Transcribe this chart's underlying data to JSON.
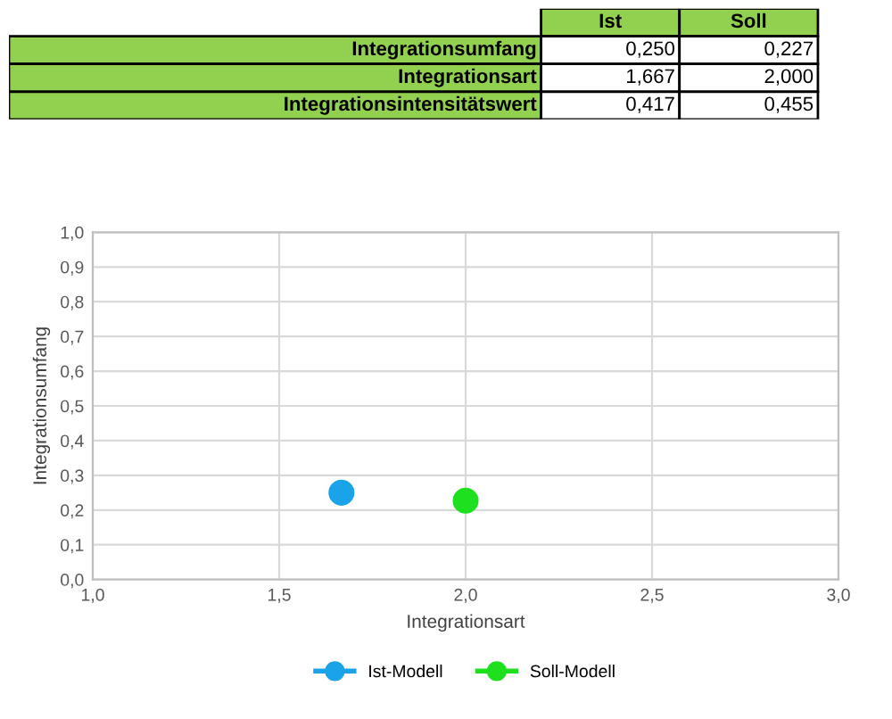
{
  "chart_data": [
    {
      "type": "other",
      "categories": [
        "Integrationsumfang",
        "Integrationsart",
        "Integrationsintensitätswert"
      ],
      "color": "#92d050",
      "series": [
        {
          "name": "Ist",
          "color": "#ffffff",
          "values": [
            0.25,
            1.667,
            0.417
          ],
          "value_labels": [
            "0,250",
            "1,667",
            "0,417"
          ]
        },
        {
          "name": "Soll",
          "color": "#ffffff",
          "values": [
            0.227,
            2.0,
            0.455
          ],
          "value_labels": [
            "0,227",
            "2,000",
            "0,455"
          ]
        }
      ]
    },
    {
      "type": "scatter",
      "xlabel": "Integrationsart",
      "ylabel": "Integrationsumfang",
      "marker": "circle",
      "grid": true,
      "legend": "bottom",
      "xlim": [
        1.0,
        3.0
      ],
      "ylim": [
        0.0,
        1.0
      ],
      "xticks": [
        {
          "value": 1.0,
          "label": "1,0"
        },
        {
          "value": 1.5,
          "label": "1,5"
        },
        {
          "value": 2.0,
          "label": "2,0"
        },
        {
          "value": 2.5,
          "label": "2,5"
        },
        {
          "value": 3.0,
          "label": "3,0"
        }
      ],
      "yticks": [
        {
          "value": 0.0,
          "label": "0,0"
        },
        {
          "value": 0.1,
          "label": "0,1"
        },
        {
          "value": 0.2,
          "label": "0,2"
        },
        {
          "value": 0.3,
          "label": "0,3"
        },
        {
          "value": 0.4,
          "label": "0,4"
        },
        {
          "value": 0.5,
          "label": "0,5"
        },
        {
          "value": 0.6,
          "label": "0,6"
        },
        {
          "value": 0.7,
          "label": "0,7"
        },
        {
          "value": 0.8,
          "label": "0,8"
        },
        {
          "value": 0.9,
          "label": "0,9"
        },
        {
          "value": 1.0,
          "label": "1,0"
        }
      ],
      "series": [
        {
          "name": "Ist-Modell",
          "color": "#1aa3e8",
          "x": [
            1.667
          ],
          "values": [
            0.25
          ]
        },
        {
          "name": "Soll-Modell",
          "color": "#1ee01e",
          "x": [
            2.0
          ],
          "values": [
            0.227
          ]
        }
      ]
    }
  ]
}
